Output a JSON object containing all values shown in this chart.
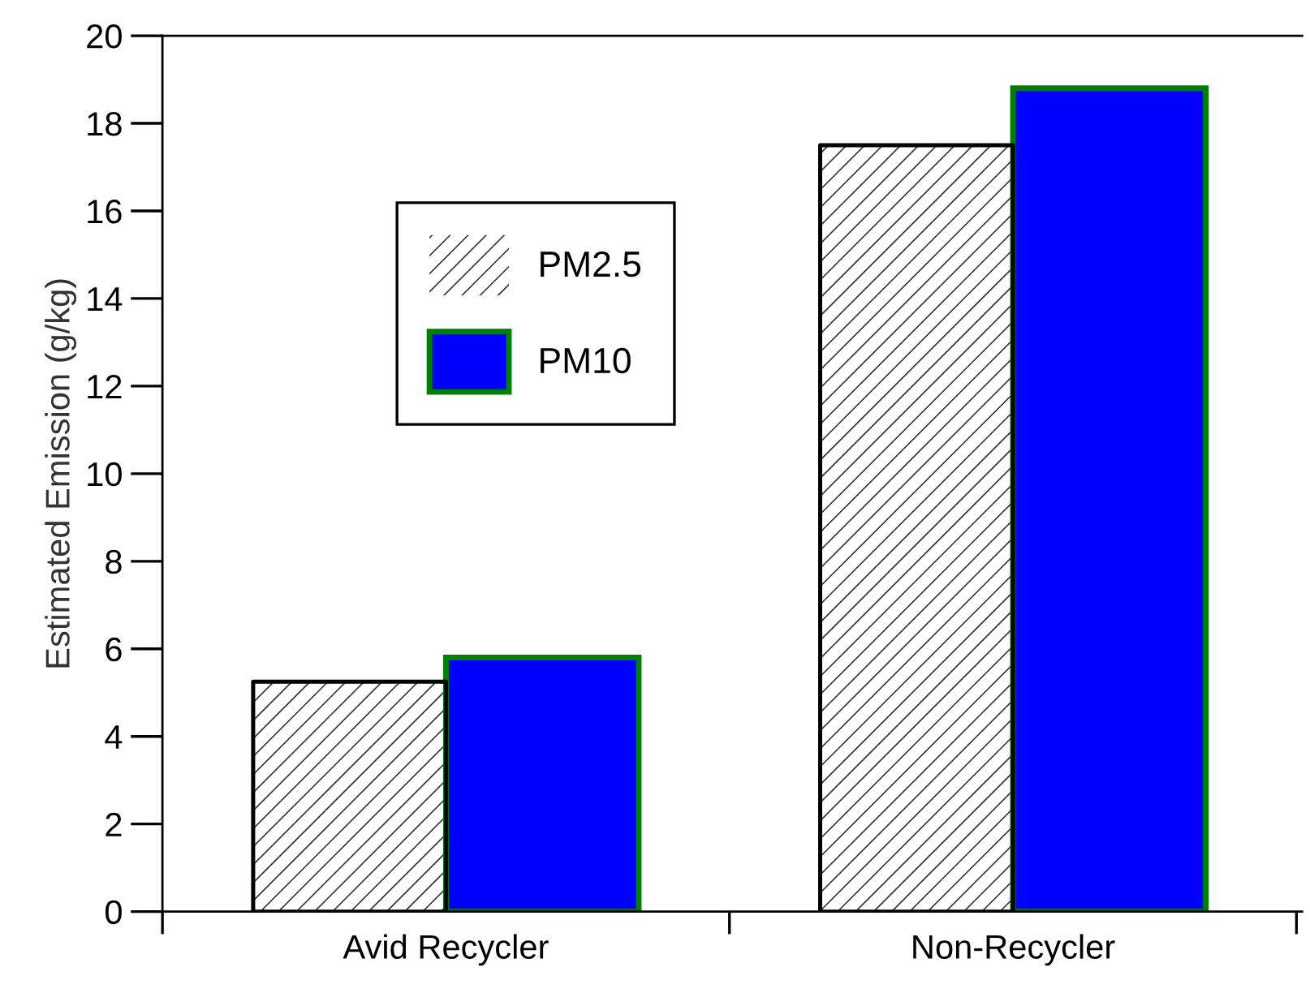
{
  "chart_data": {
    "type": "bar",
    "ylabel": "Estimated Emission (g/kg)",
    "categories": [
      "Avid Recycler",
      "Non-Recycler"
    ],
    "series": [
      {
        "name": "PM2.5",
        "color": "#ffffff",
        "values": [
          5.25,
          17.5
        ]
      },
      {
        "name": "PM10",
        "color": "#0000ff",
        "values": [
          5.8,
          18.8
        ]
      }
    ],
    "ylim": [
      0,
      20
    ],
    "yticks": [
      0,
      2,
      4,
      6,
      8,
      10,
      12,
      14,
      16,
      18,
      20
    ],
    "grid": false,
    "legend": "top left"
  }
}
